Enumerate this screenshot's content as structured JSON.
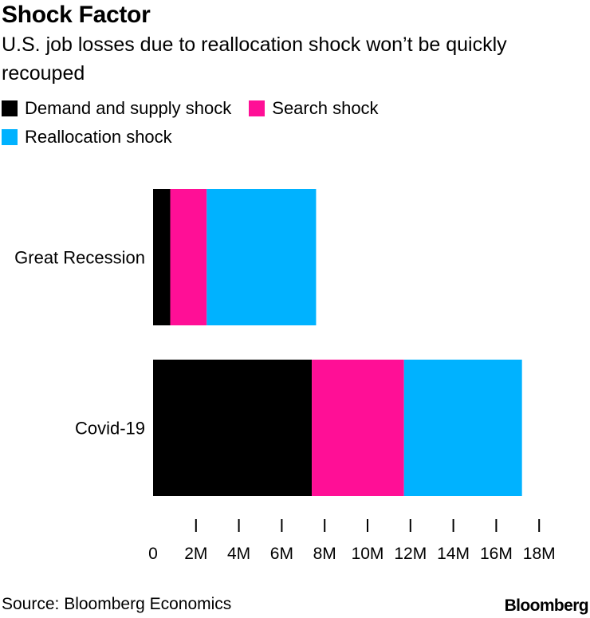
{
  "header": {
    "title": "Shock Factor",
    "subtitle": "U.S. job losses due to reallocation shock won’t be quickly recouped"
  },
  "footer": {
    "source": "Source: Bloomberg Economics",
    "brand": "Bloomberg"
  },
  "chart_data": {
    "type": "bar",
    "orientation": "horizontal",
    "stacked": true,
    "categories": [
      "Great Recession",
      "Covid-19"
    ],
    "series": [
      {
        "name": "Demand and supply shock",
        "color": "#000000",
        "values": [
          0.8,
          7.4
        ]
      },
      {
        "name": "Search shock",
        "color": "#ff0f96",
        "values": [
          1.7,
          4.3
        ]
      },
      {
        "name": "Reallocation shock",
        "color": "#00b2ff",
        "values": [
          5.1,
          5.5
        ]
      }
    ],
    "xticks": [
      0,
      2,
      4,
      6,
      8,
      10,
      12,
      14,
      16,
      18
    ],
    "xtick_labels": [
      "0",
      "2M",
      "4M",
      "6M",
      "8M",
      "10M",
      "12M",
      "14M",
      "16M",
      "18M"
    ],
    "xlim": [
      0,
      18
    ],
    "legend_position": "top-left",
    "grid": false
  }
}
